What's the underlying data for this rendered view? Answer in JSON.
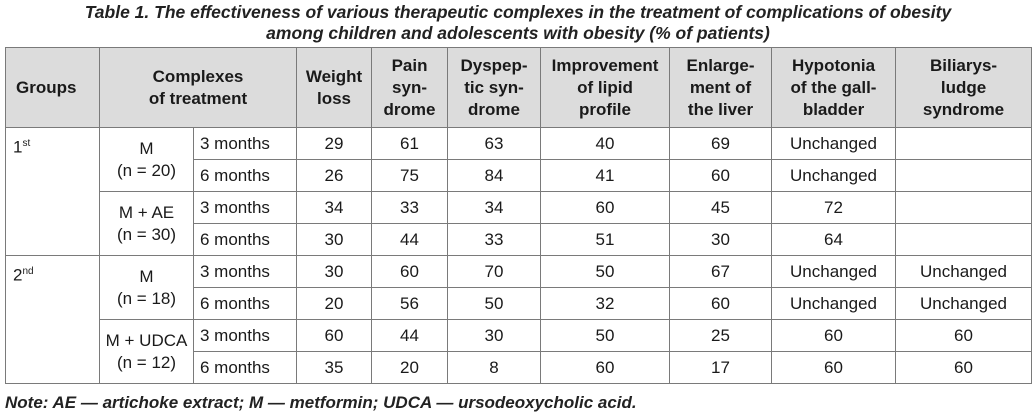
{
  "caption": {
    "line1": "Table 1. The effectiveness of various therapeutic complexes in the treatment of complications of obesity",
    "line2": "among children and adolescents with obesity (% of patients)"
  },
  "headers": {
    "groups": "Groups",
    "complexes_l1": "Complexes",
    "complexes_l2": "of treatment",
    "weight_l1": "Weight",
    "weight_l2": "loss",
    "pain_l1": "Pain",
    "pain_l2": "syn-",
    "pain_l3": "drome",
    "dysp_l1": "Dyspep-",
    "dysp_l2": "tic syn-",
    "dysp_l3": "drome",
    "lipid_l1": "Improvement",
    "lipid_l2": "of lipid",
    "lipid_l3": "profile",
    "liver_l1": "Enlarge-",
    "liver_l2": "ment of",
    "liver_l3": "the liver",
    "hypo_l1": "Hypotonia",
    "hypo_l2": "of the gall-",
    "hypo_l3": "bladder",
    "bil_l1": "Biliarys-",
    "bil_l2": "ludge",
    "bil_l3": "syndrome"
  },
  "groups": [
    {
      "num": "1",
      "sup": "st",
      "complexes": [
        {
          "name": "M",
          "n": "(n = 20)",
          "rows": [
            {
              "period": "3 months",
              "weight": "29",
              "pain": "61",
              "dysp": "63",
              "lipid": "40",
              "liver": "69",
              "hypo": "Unchanged",
              "bil": ""
            },
            {
              "period": "6 months",
              "weight": "26",
              "pain": "75",
              "dysp": "84",
              "lipid": "41",
              "liver": "60",
              "hypo": "Unchanged",
              "bil": ""
            }
          ]
        },
        {
          "name": "M + AE",
          "n": "(n = 30)",
          "rows": [
            {
              "period": "3 months",
              "weight": "34",
              "pain": "33",
              "dysp": "34",
              "lipid": "60",
              "liver": "45",
              "hypo": "72",
              "bil": ""
            },
            {
              "period": "6 months",
              "weight": "30",
              "pain": "44",
              "dysp": "33",
              "lipid": "51",
              "liver": "30",
              "hypo": "64",
              "bil": ""
            }
          ]
        }
      ]
    },
    {
      "num": "2",
      "sup": "nd",
      "complexes": [
        {
          "name": "M",
          "n": "(n = 18)",
          "rows": [
            {
              "period": "3 months",
              "weight": "30",
              "pain": "60",
              "dysp": "70",
              "lipid": "50",
              "liver": "67",
              "hypo": "Unchanged",
              "bil": "Unchanged"
            },
            {
              "period": "6 months",
              "weight": "20",
              "pain": "56",
              "dysp": "50",
              "lipid": "32",
              "liver": "60",
              "hypo": "Unchanged",
              "bil": "Unchanged"
            }
          ]
        },
        {
          "name": "M + UDCA",
          "n": "(n = 12)",
          "rows": [
            {
              "period": "3 months",
              "weight": "60",
              "pain": "44",
              "dysp": "30",
              "lipid": "50",
              "liver": "25",
              "hypo": "60",
              "bil": "60"
            },
            {
              "period": "6 months",
              "weight": "35",
              "pain": "20",
              "dysp": "8",
              "lipid": "60",
              "liver": "17",
              "hypo": "60",
              "bil": "60"
            }
          ]
        }
      ]
    }
  ],
  "note": "Note: AE — artichoke extract; M — metformin; UDCA — ursodeoxycholic acid."
}
